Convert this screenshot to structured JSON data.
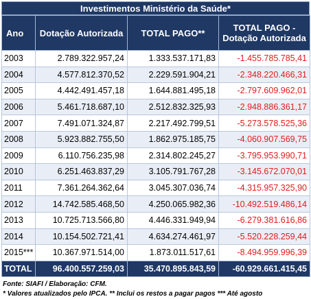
{
  "title": "Investimentos Ministério da Saúde*",
  "headers": {
    "ano": "Ano",
    "dotacao": "Dotação Autorizada",
    "pago": "TOTAL PAGO**",
    "diff_line1": "TOTAL PAGO -",
    "diff_line2": "Dotação Autorizada"
  },
  "rows": [
    {
      "ano": "2003",
      "dotacao": "2.789.322.957,24",
      "pago": "1.333.537.171,83",
      "diff": "-1.455.785.785,41"
    },
    {
      "ano": "2004",
      "dotacao": "4.577.812.370,52",
      "pago": "2.229.591.904,21",
      "diff": "-2.348.220.466,31"
    },
    {
      "ano": "2005",
      "dotacao": "4.442.491.457,18",
      "pago": "1.644.881.495,18",
      "diff": "-2.797.609.962,01"
    },
    {
      "ano": "2006",
      "dotacao": "5.461.718.687,10",
      "pago": "2.512.832.325,93",
      "diff": "-2.948.886.361,17"
    },
    {
      "ano": "2007",
      "dotacao": "7.491.071.324,87",
      "pago": "2.217.492.799,51",
      "diff": "-5.273.578.525,36"
    },
    {
      "ano": "2008",
      "dotacao": "5.923.882.755,50",
      "pago": "1.862.975.185,75",
      "diff": "-4.060.907.569,75"
    },
    {
      "ano": "2009",
      "dotacao": "6.110.756.235,98",
      "pago": "2.314.802.245,27",
      "diff": "-3.795.953.990,71"
    },
    {
      "ano": "2010",
      "dotacao": "6.251.463.837,29",
      "pago": "3.105.791.767,28",
      "diff": "-3.145.672.070,01"
    },
    {
      "ano": "2011",
      "dotacao": "7.361.264.362,64",
      "pago": "3.045.307.036,74",
      "diff": "-4.315.957.325,90"
    },
    {
      "ano": "2012",
      "dotacao": "14.742.585.468,50",
      "pago": "4.250.065.982,36",
      "diff": "-10.492.519.486,14"
    },
    {
      "ano": "2013",
      "dotacao": "10.725.713.566,80",
      "pago": "4.446.331.949,94",
      "diff": "-6.279.381.616,86"
    },
    {
      "ano": "2014",
      "dotacao": "10.154.502.721,41",
      "pago": "4.634.274.461,97",
      "diff": "-5.520.228.259,44"
    },
    {
      "ano": "2015***",
      "dotacao": "10.367.971.514,00",
      "pago": "1.873.011.517,61",
      "diff": "-8.494.959.996,39"
    }
  ],
  "total": {
    "label": "TOTAL",
    "dotacao": "96.400.557.259,03",
    "pago": "35.470.895.843,59",
    "diff": "-60.929.661.415,45"
  },
  "notes": {
    "source": "Fonte: SIAFI / Elaboração: CFM.",
    "footnote": "* Valores atualizados pelo IPCA. ** Inclui os restos a pagar pagos *** Até agosto"
  },
  "colors": {
    "header_bg": "#1f3864",
    "negative": "#e31b1b",
    "stripe": "#e9eef6"
  }
}
